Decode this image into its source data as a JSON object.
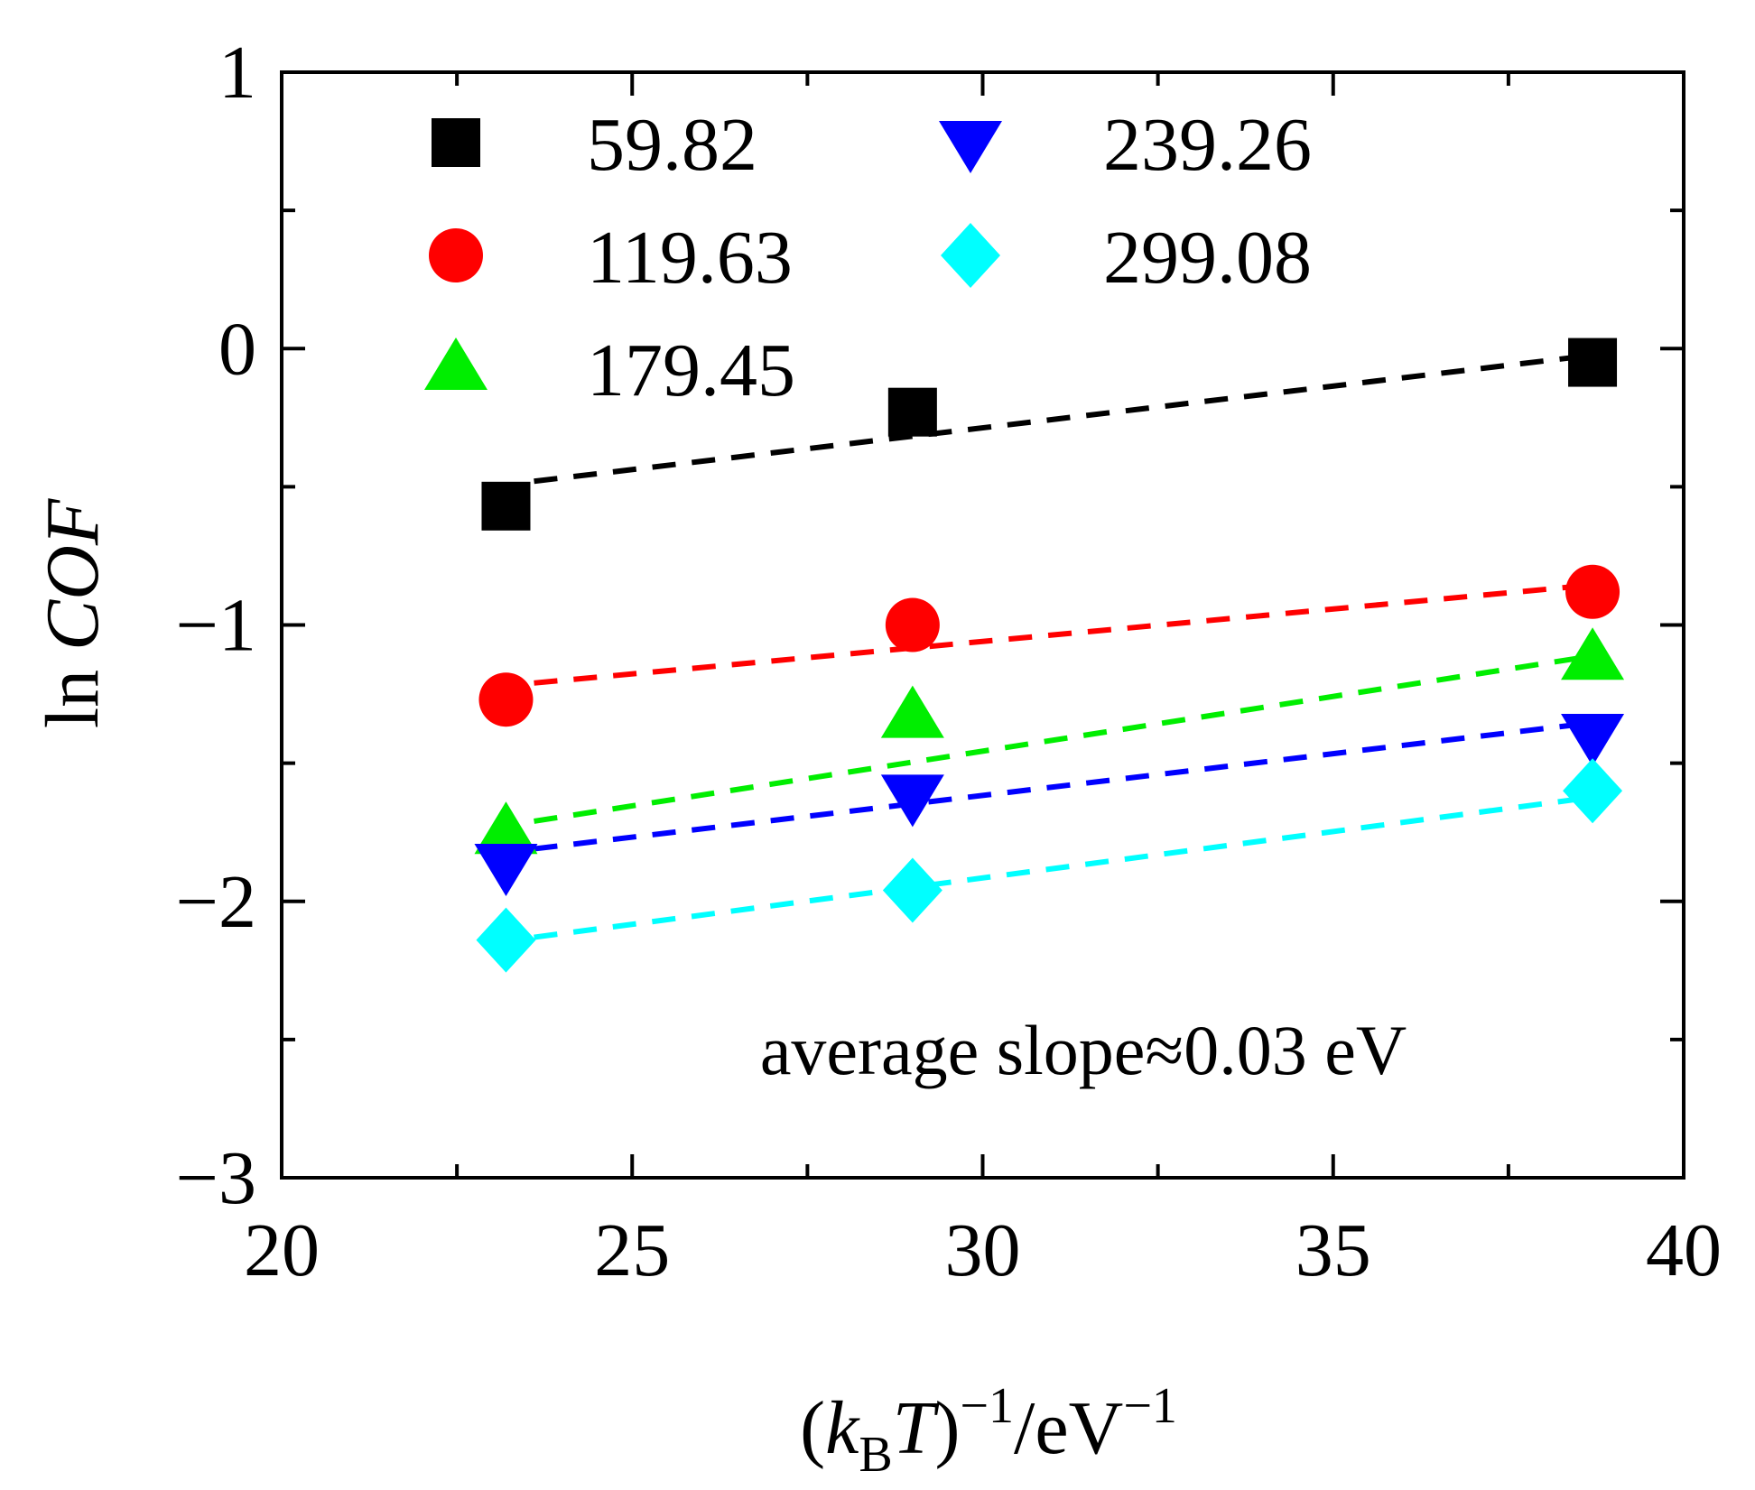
{
  "chart_data": {
    "type": "scatter",
    "xlabel": {
      "prefix": "(",
      "k": "k",
      "k_sub": "B",
      "T": "T",
      "close": ")",
      "sup1": "−1",
      "unit": "/eV",
      "sup2": "−1"
    },
    "ylabel": {
      "prefix": "ln ",
      "italic": "COF"
    },
    "xlim": [
      20,
      40
    ],
    "ylim": [
      -3,
      1
    ],
    "x_ticks": [
      20,
      25,
      30,
      35,
      40
    ],
    "x_tick_labels": [
      "20",
      "25",
      "30",
      "35",
      "40"
    ],
    "x_minor_ticks": [
      22.5,
      27.5,
      32.5,
      37.5
    ],
    "y_ticks": [
      1,
      0,
      -1,
      -2,
      -3
    ],
    "y_tick_labels": [
      "1",
      "0",
      "−1",
      "−2",
      "−3"
    ],
    "y_minor_ticks": [
      0.5,
      -0.5,
      -1.5,
      -2.5
    ],
    "annotation": "average slope≈0.03 eV",
    "series": [
      {
        "name": "59.82",
        "marker": "square",
        "color": "#000000",
        "x": [
          23.2,
          29.0,
          38.7
        ],
        "y": [
          -0.57,
          -0.23,
          -0.05
        ],
        "fit": {
          "x": [
            23.6,
            38.5
          ],
          "y": [
            -0.48,
            -0.03
          ]
        }
      },
      {
        "name": "119.63",
        "marker": "circle",
        "color": "#ff0000",
        "x": [
          23.2,
          29.0,
          38.7
        ],
        "y": [
          -1.27,
          -1.0,
          -0.88
        ],
        "fit": {
          "x": [
            23.6,
            38.5
          ],
          "y": [
            -1.21,
            -0.86
          ]
        }
      },
      {
        "name": "179.45",
        "marker": "triangle-up",
        "color": "#00ee00",
        "x": [
          23.2,
          29.0,
          38.7
        ],
        "y": [
          -1.75,
          -1.33,
          -1.12
        ],
        "fit": {
          "x": [
            23.6,
            38.5
          ],
          "y": [
            -1.71,
            -1.12
          ]
        }
      },
      {
        "name": "239.26",
        "marker": "triangle-down",
        "color": "#0000ff",
        "x": [
          23.2,
          29.0,
          38.7
        ],
        "y": [
          -1.87,
          -1.62,
          -1.4
        ],
        "fit": {
          "x": [
            23.6,
            38.5
          ],
          "y": [
            -1.81,
            -1.36
          ]
        }
      },
      {
        "name": "299.08",
        "marker": "diamond",
        "color": "#00ffff",
        "x": [
          23.2,
          29.0,
          38.7
        ],
        "y": [
          -2.14,
          -1.96,
          -1.6
        ],
        "fit": {
          "x": [
            23.6,
            38.5
          ],
          "y": [
            -2.13,
            -1.63
          ]
        }
      }
    ],
    "legend": {
      "placement": "top-left",
      "columns": 2
    }
  }
}
